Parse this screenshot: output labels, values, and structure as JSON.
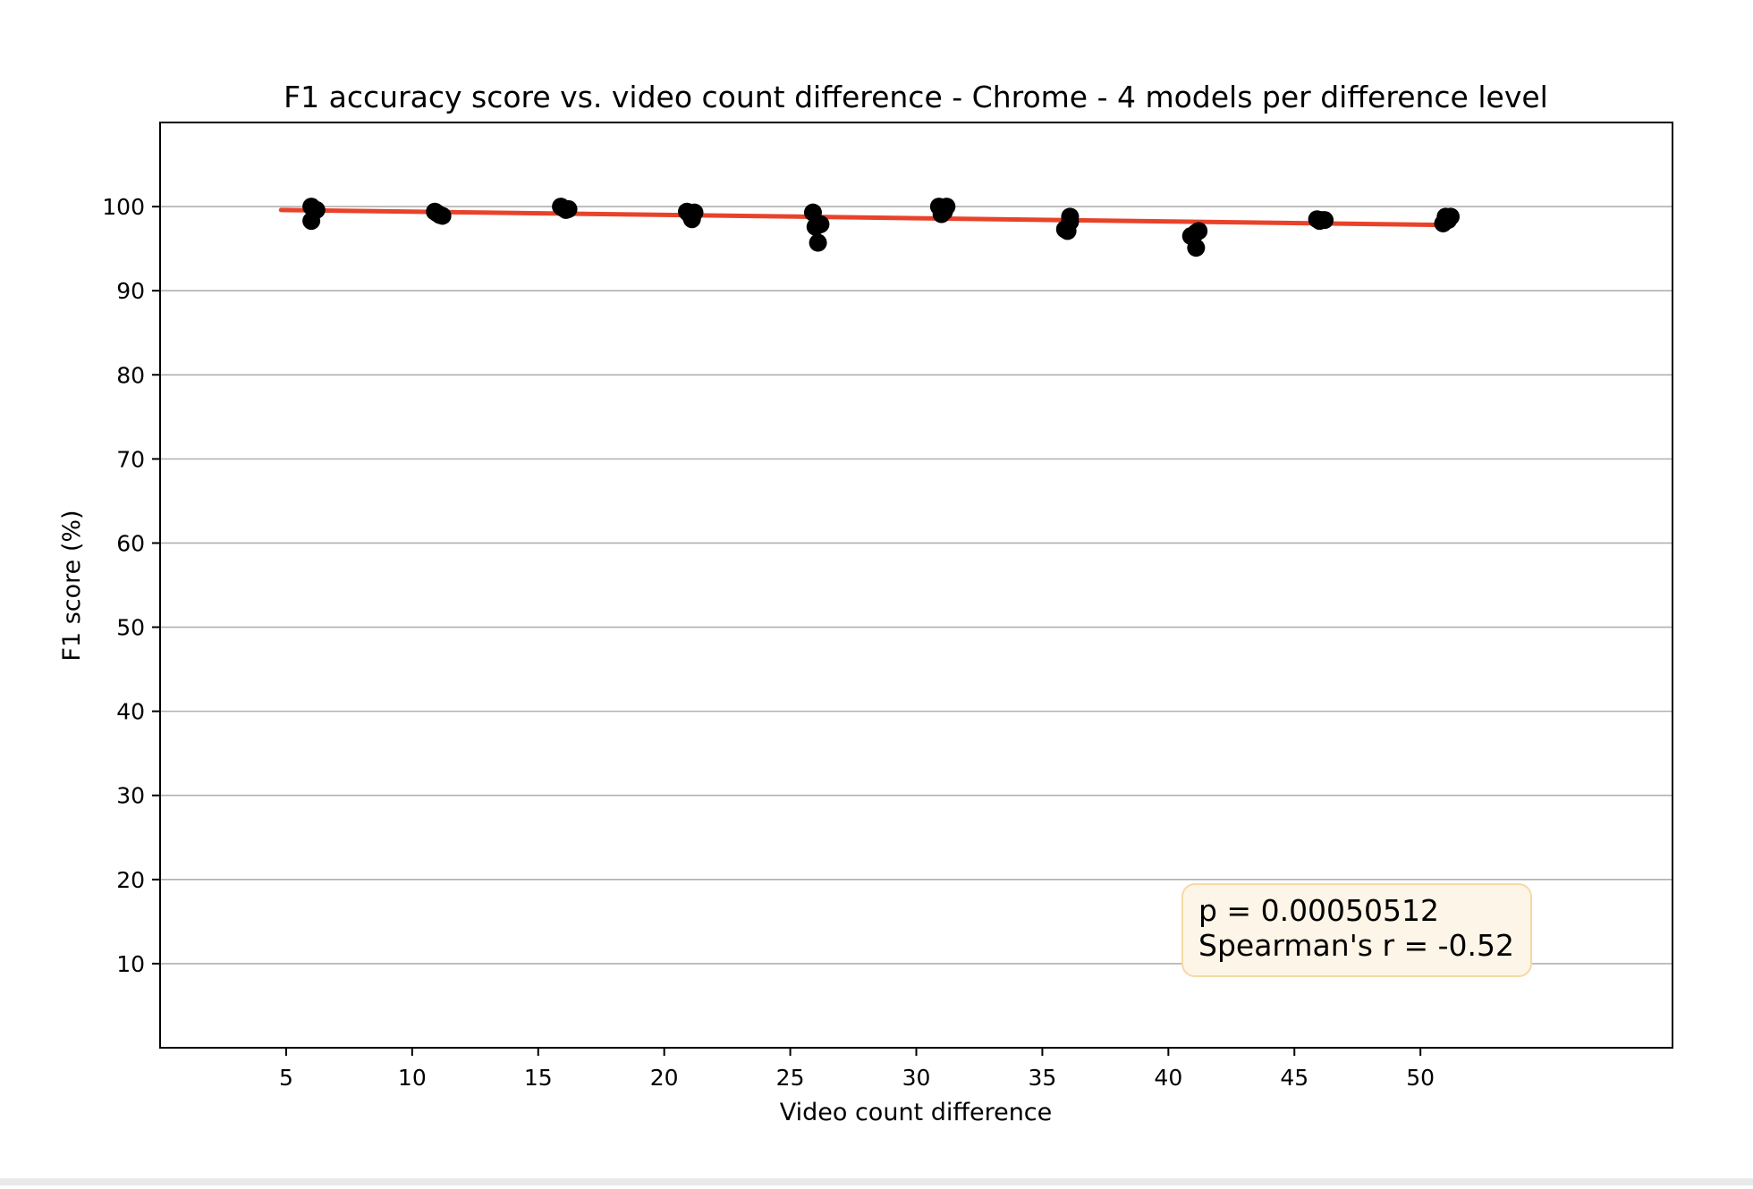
{
  "chart_data": {
    "type": "scatter",
    "title": "F1 accuracy score vs. video count difference - Chrome - 4 models per difference level",
    "xlabel": "Video count difference",
    "ylabel": "F1 score (%)",
    "xlim": [
      0,
      60
    ],
    "ylim": [
      0,
      110
    ],
    "xticks": [
      5,
      10,
      15,
      20,
      25,
      30,
      35,
      40,
      45,
      50
    ],
    "yticks": [
      10,
      20,
      30,
      40,
      50,
      60,
      70,
      80,
      90,
      100
    ],
    "grid": "horizontal",
    "series": [
      {
        "marker_color": "#000000",
        "points": [
          {
            "x": 6.0,
            "y": 100.0
          },
          {
            "x": 6.1,
            "y": 99.7
          },
          {
            "x": 6.2,
            "y": 99.6
          },
          {
            "x": 6.0,
            "y": 98.3
          },
          {
            "x": 10.9,
            "y": 99.4
          },
          {
            "x": 11.0,
            "y": 99.2
          },
          {
            "x": 11.1,
            "y": 99.0
          },
          {
            "x": 11.2,
            "y": 98.9
          },
          {
            "x": 15.9,
            "y": 100.0
          },
          {
            "x": 16.0,
            "y": 99.8
          },
          {
            "x": 16.1,
            "y": 99.6
          },
          {
            "x": 16.2,
            "y": 99.7
          },
          {
            "x": 20.9,
            "y": 99.4
          },
          {
            "x": 21.0,
            "y": 99.1
          },
          {
            "x": 21.2,
            "y": 99.3
          },
          {
            "x": 21.1,
            "y": 98.5
          },
          {
            "x": 25.9,
            "y": 99.3
          },
          {
            "x": 26.0,
            "y": 97.6
          },
          {
            "x": 26.2,
            "y": 97.9
          },
          {
            "x": 26.1,
            "y": 95.7
          },
          {
            "x": 30.9,
            "y": 100.0
          },
          {
            "x": 31.2,
            "y": 100.0
          },
          {
            "x": 31.0,
            "y": 99.1
          },
          {
            "x": 31.1,
            "y": 99.4
          },
          {
            "x": 36.1,
            "y": 98.8
          },
          {
            "x": 35.9,
            "y": 97.3
          },
          {
            "x": 36.0,
            "y": 97.1
          },
          {
            "x": 36.1,
            "y": 98.2
          },
          {
            "x": 40.9,
            "y": 96.5
          },
          {
            "x": 41.1,
            "y": 96.9
          },
          {
            "x": 41.2,
            "y": 97.1
          },
          {
            "x": 41.1,
            "y": 95.1
          },
          {
            "x": 45.9,
            "y": 98.5
          },
          {
            "x": 46.0,
            "y": 98.3
          },
          {
            "x": 46.1,
            "y": 98.4
          },
          {
            "x": 46.2,
            "y": 98.4
          },
          {
            "x": 51.0,
            "y": 98.8
          },
          {
            "x": 51.2,
            "y": 98.8
          },
          {
            "x": 50.9,
            "y": 98.0
          },
          {
            "x": 51.1,
            "y": 98.4
          }
        ]
      }
    ],
    "trendline": {
      "color": "#e8432a",
      "x": [
        4.8,
        51.2
      ],
      "y": [
        99.6,
        97.8
      ]
    },
    "annotation": {
      "lines": [
        "p = 0.00050512",
        "Spearman's r = -0.52"
      ],
      "placement": "bottom-right",
      "background": "#fdf5e7",
      "border": "#f5d9a5"
    }
  }
}
